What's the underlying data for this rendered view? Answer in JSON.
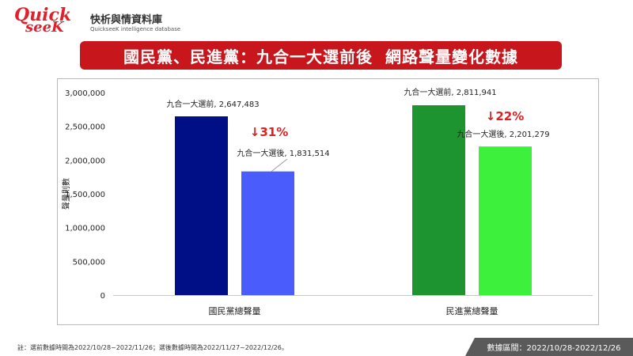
{
  "logo": {
    "word_quick": "Quick",
    "word_seek": "seeK",
    "name_cn": "快析與情資料庫",
    "name_en": "QuickseeK intelligence database"
  },
  "title": "國民黨、民進黨：九合一大選前後  網路聲量變化數據",
  "footer": {
    "note": "註：選前數據時間為2022/10/28~2022/11/26；選後數據時間為2022/11/27~2022/12/26。",
    "range": "數據區間：2022/10/28-2022/12/26"
  },
  "colors": {
    "brand_red": "#c8161d",
    "kmt_before": "#000f85",
    "kmt_after": "#4a5cfb",
    "dpp_before": "#1e9431",
    "dpp_after": "#3cf03c",
    "change_red": "#e02020"
  },
  "chart_data": {
    "type": "bar",
    "title": "",
    "xlabel": "",
    "ylabel": "聲量則數",
    "ylim": [
      0,
      3000000
    ],
    "yticks": [
      0,
      500000,
      1000000,
      1500000,
      2000000,
      2500000,
      3000000
    ],
    "ytick_labels": [
      "0",
      "500,000",
      "1,000,000",
      "1,500,000",
      "2,000,000",
      "2,500,000",
      "3,000,000"
    ],
    "grid": false,
    "legend": "none",
    "categories": [
      "國民黨總聲量",
      "民進黨總聲量"
    ],
    "groups": [
      {
        "category": "國民黨總聲量",
        "bars": [
          {
            "label": "九合一大選前, 2,647,483",
            "value": 2647483,
            "color": "#000f85"
          },
          {
            "label": "九合一大選後, 1,831,514",
            "value": 1831514,
            "color": "#4a5cfb"
          }
        ],
        "change": "↓31%"
      },
      {
        "category": "民進黨總聲量",
        "bars": [
          {
            "label": "九合一大選前, 2,811,941",
            "value": 2811941,
            "color": "#1e9431"
          },
          {
            "label": "九合一大選後, 2,201,279",
            "value": 2201279,
            "color": "#3cf03c"
          }
        ],
        "change": "↓22%"
      }
    ]
  }
}
